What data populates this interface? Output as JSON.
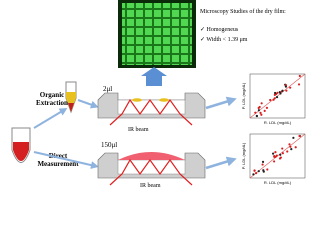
{
  "microscopy": {
    "title": "Microscopy Studies of the dry film:",
    "items": [
      "Homogeneus",
      "Width < 1.39 μm"
    ]
  },
  "left": {
    "organic": [
      "Organic",
      "Extraction"
    ],
    "direct": [
      "Direct",
      "Measurement"
    ]
  },
  "volumes": {
    "small": "2μl",
    "large": "150μl"
  },
  "beams": [
    "IR beam",
    "IR beam"
  ],
  "plots": [
    {
      "y_label": "P. LDL (mg/dL)",
      "x_label": "R. LDL (mg/dL)"
    },
    {
      "y_label": "P. LDL (mg/dL)",
      "x_label": "R. LDL (mg/dL)"
    }
  ]
}
